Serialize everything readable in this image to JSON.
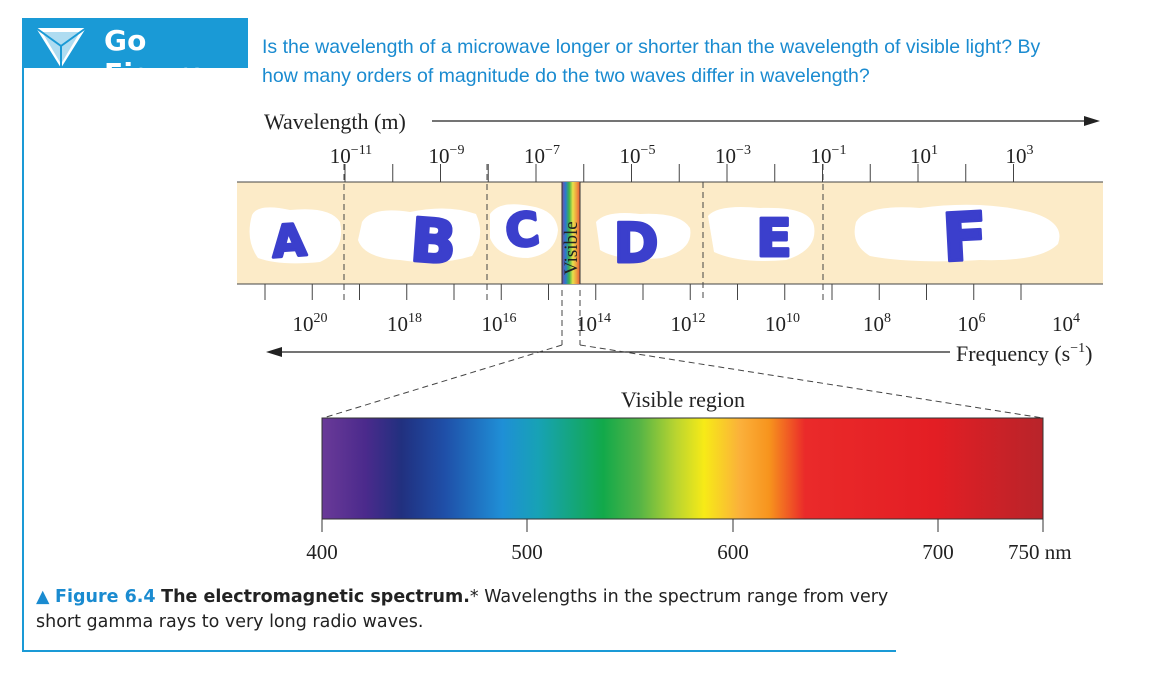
{
  "go_figure": {
    "title": "Go Figure"
  },
  "question": "Is the wavelength of a microwave longer or shorter than the wavelength of visible light? By how many orders of magnitude do the two waves differ in wavelength?",
  "wavelength_axis": {
    "label": "Wavelength (m)",
    "ticks": [
      {
        "base": "10",
        "exp": "−11"
      },
      {
        "base": "10",
        "exp": "−9"
      },
      {
        "base": "10",
        "exp": "−7"
      },
      {
        "base": "10",
        "exp": "−5"
      },
      {
        "base": "10",
        "exp": "−3"
      },
      {
        "base": "10",
        "exp": "−1"
      },
      {
        "base": "10",
        "exp": "1"
      },
      {
        "base": "10",
        "exp": "3"
      }
    ]
  },
  "frequency_axis": {
    "label_base": "Frequency (s",
    "label_exp": "−1",
    "label_end": ")",
    "ticks": [
      {
        "base": "10",
        "exp": "20"
      },
      {
        "base": "10",
        "exp": "18"
      },
      {
        "base": "10",
        "exp": "16"
      },
      {
        "base": "10",
        "exp": "14"
      },
      {
        "base": "10",
        "exp": "12"
      },
      {
        "base": "10",
        "exp": "10"
      },
      {
        "base": "10",
        "exp": "8"
      },
      {
        "base": "10",
        "exp": "6"
      },
      {
        "base": "10",
        "exp": "4"
      }
    ]
  },
  "regions": {
    "visible_label": "Visible"
  },
  "handwritten_letters": [
    "A",
    "B",
    "C",
    "D",
    "E",
    "F"
  ],
  "visible_region": {
    "title": "Visible region",
    "ticks": [
      "400",
      "500",
      "600",
      "700",
      "750 nm"
    ]
  },
  "caption": {
    "marker": "▲",
    "fig_label": "Figure 6.4",
    "bold_text": "The electromagnetic spectrum.",
    "text": "* Wavelengths in the spectrum range from very short gamma rays to very long radio waves."
  },
  "colors": {
    "accent": "#1a9ad6",
    "band": "#fcebc8",
    "marker": "#3b3fcc"
  }
}
